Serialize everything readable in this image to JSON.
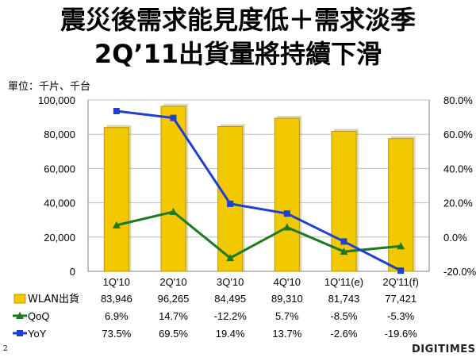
{
  "title_line1": "震災後需求能見度低＋需求淡季",
  "title_line2": "2Q’11出貨量將持續下滑",
  "unit_label": "單位：千片、千台",
  "page_number": "2",
  "logo_text": "DIGITIMES",
  "colors": {
    "bar": "#F2C800",
    "bar_edge": "#B89A00",
    "qoq": "#1E7A1E",
    "yoy": "#1F3FD0",
    "grid": "#BDBDBD"
  },
  "chart_data": {
    "type": "bar",
    "title": "",
    "categories": [
      "1Q'10",
      "2Q'10",
      "3Q'10",
      "4Q'10",
      "1Q'11(e)",
      "2Q'11(f)"
    ],
    "y_left": {
      "min": 0,
      "max": 100000,
      "step": 20000,
      "tick_labels": [
        "0",
        "20,000",
        "40,000",
        "60,000",
        "80,000",
        "100,000"
      ]
    },
    "y_right": {
      "min": -0.2,
      "max": 0.8,
      "step": 0.2,
      "tick_labels": [
        "-20.0%",
        "0.0%",
        "20.0%",
        "40.0%",
        "60.0%",
        "80.0%"
      ]
    },
    "grid": true,
    "series": [
      {
        "name": "WLAN出貨",
        "type": "bar",
        "axis": "left",
        "values": [
          83946,
          96265,
          84495,
          89310,
          81743,
          77421
        ],
        "labels": [
          "83,946",
          "96,265",
          "84,495",
          "89,310",
          "81,743",
          "77,421"
        ]
      },
      {
        "name": "QoQ",
        "type": "line",
        "marker": "triangle",
        "axis": "right",
        "values": [
          0.069,
          0.147,
          -0.122,
          0.057,
          -0.085,
          -0.053
        ],
        "labels": [
          "6.9%",
          "14.7%",
          "-12.2%",
          "5.7%",
          "-8.5%",
          "-5.3%"
        ]
      },
      {
        "name": "YoY",
        "type": "line",
        "marker": "square",
        "axis": "right",
        "values": [
          0.735,
          0.695,
          0.194,
          0.137,
          -0.026,
          -0.196
        ],
        "labels": [
          "73.5%",
          "69.5%",
          "19.4%",
          "13.7%",
          "-2.6%",
          "-19.6%"
        ]
      }
    ]
  }
}
